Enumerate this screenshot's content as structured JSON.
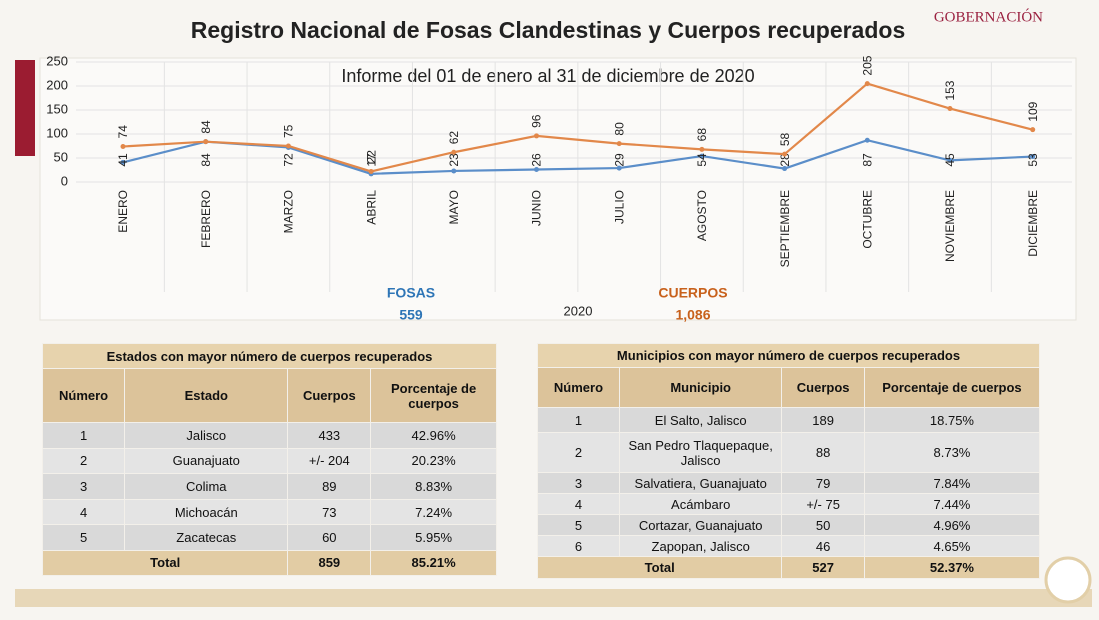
{
  "header": {
    "logo": "GOBERNACIÓN"
  },
  "chart_data": {
    "type": "line",
    "title": "Registro Nacional de Fosas Clandestinas y Cuerpos recuperados",
    "subtitle": "Informe del 01 de enero al 31 de diciembre de 2020",
    "x_label": "2020",
    "categories": [
      "ENERO",
      "FEBRERO",
      "MARZO",
      "ABRIL",
      "MAYO",
      "JUNIO",
      "JULIO",
      "AGOSTO",
      "SEPTIEMBRE",
      "OCTUBRE",
      "NOVIEMBRE",
      "DICIEMBRE"
    ],
    "series": [
      {
        "name": "FOSAS",
        "color": "#5b8ec9",
        "legend_color": "#2e75b6",
        "total": 559,
        "values": [
          41,
          84,
          72,
          17,
          23,
          26,
          29,
          54,
          28,
          87,
          45,
          53
        ]
      },
      {
        "name": "CUERPOS",
        "color": "#e2884a",
        "legend_color": "#c8611c",
        "total": {
          "value": 1086,
          "label": "1,086"
        },
        "values": [
          74,
          84,
          75,
          22,
          62,
          96,
          80,
          68,
          58,
          205,
          153,
          109
        ]
      }
    ],
    "ylim": [
      0,
      250
    ],
    "yticks": [
      0,
      50,
      100,
      150,
      200,
      250
    ],
    "grid": true
  },
  "tables": [
    {
      "title": "Estados con mayor número de cuerpos recuperados",
      "columns": [
        "Número",
        "Estado",
        "Cuerpos",
        "Porcentaje de cuerpos"
      ],
      "rows": [
        [
          "1",
          "Jalisco",
          "433",
          "42.96%"
        ],
        [
          "2",
          "Guanajuato",
          "+/- 204",
          "20.23%"
        ],
        [
          "3",
          "Colima",
          "89",
          "8.83%"
        ],
        [
          "4",
          "Michoacán",
          "73",
          "7.24%"
        ],
        [
          "5",
          "Zacatecas",
          "60",
          "5.95%"
        ]
      ],
      "total": [
        "Total",
        "859",
        "85.21%"
      ]
    },
    {
      "title": "Municipios con mayor número de cuerpos recuperados",
      "columns": [
        "Número",
        "Municipio",
        "Cuerpos",
        "Porcentaje de cuerpos"
      ],
      "rows": [
        [
          "1",
          "El Salto, Jalisco",
          "189",
          "18.75%"
        ],
        [
          "2",
          "San Pedro Tlaquepaque, Jalisco",
          "88",
          "8.73%"
        ],
        [
          "3",
          "Salvatiera, Guanajuato",
          "79",
          "7.84%"
        ],
        [
          "4",
          "Acámbaro",
          "+/- 75",
          "7.44%"
        ],
        [
          "5",
          "Cortazar, Guanajuato",
          "50",
          "4.96%"
        ],
        [
          "6",
          "Zapopan, Jalisco",
          "46",
          "4.65%"
        ]
      ],
      "total": [
        "Total",
        "527",
        "52.37%"
      ]
    }
  ]
}
